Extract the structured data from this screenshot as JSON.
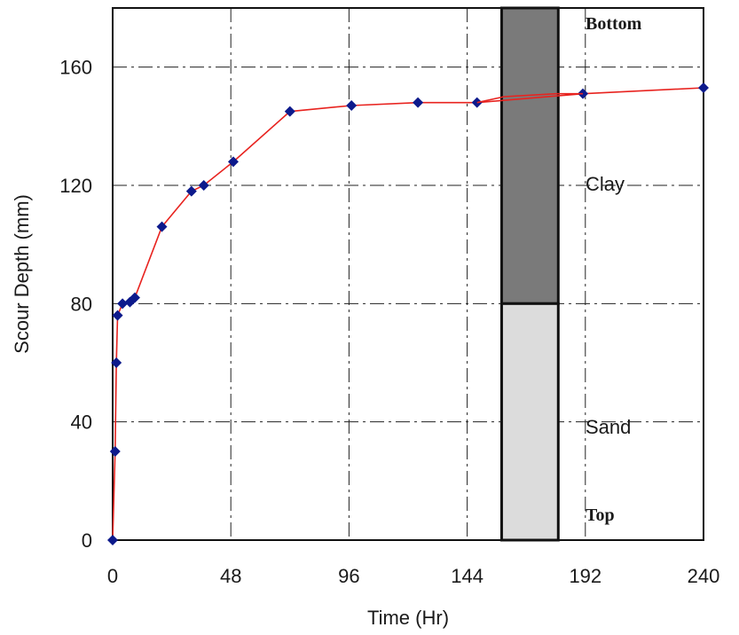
{
  "chart_data": {
    "type": "line",
    "xlabel": "Time (Hr)",
    "ylabel": "Scour Depth (mm)",
    "xlim": [
      0,
      240
    ],
    "ylim": [
      0,
      180
    ],
    "x_ticks": [
      "0",
      "48",
      "96",
      "144",
      "192",
      "240"
    ],
    "y_ticks": [
      "0",
      "40",
      "80",
      "120",
      "160"
    ],
    "grid": true,
    "series": [
      {
        "color": "#e8231f",
        "marker_color": "#0d1a8c",
        "x": [
          0,
          1,
          1.5,
          2,
          4,
          7,
          9,
          20,
          32,
          37,
          49,
          72,
          97,
          124,
          148,
          191,
          240
        ],
        "y": [
          0,
          30,
          60,
          76,
          80,
          80.5,
          82,
          106,
          118,
          120,
          128,
          145,
          147,
          148,
          148,
          151,
          153
        ]
      }
    ],
    "connector": {
      "x": [
        148,
        159,
        180,
        191
      ],
      "y": [
        148,
        150,
        151,
        151
      ]
    },
    "soil_column": {
      "x_start": 158,
      "x_end": 181,
      "layers": [
        {
          "name": "Clay",
          "from": 80,
          "to": 180,
          "color": "#7a7a7a"
        },
        {
          "name": "Sand",
          "from": 0,
          "to": 80,
          "color": "#dcdcdc"
        }
      ],
      "top_label": "Top",
      "bottom_label": "Bottom"
    }
  }
}
